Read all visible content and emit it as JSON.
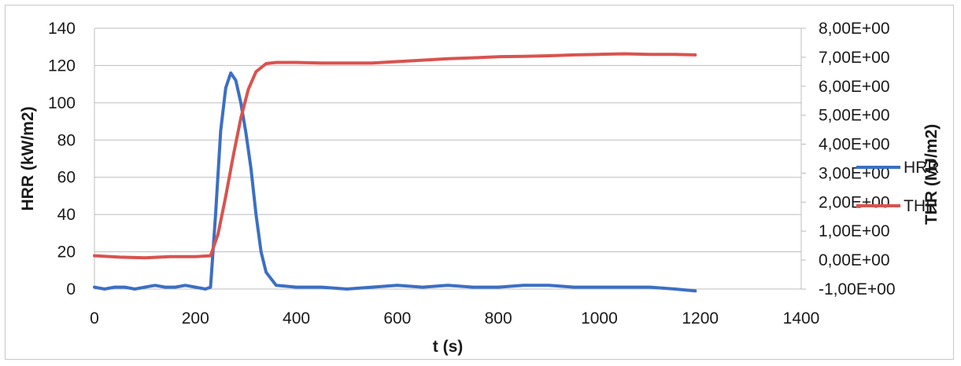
{
  "chart_data": {
    "type": "line",
    "xlabel": "t (s)",
    "ylabel": "HRR (kW/m2)",
    "y2label": "THR (MJ/m2)",
    "xlim": [
      0,
      1400
    ],
    "ylim": [
      0,
      140
    ],
    "y2lim": [
      -1,
      8
    ],
    "x_ticks": [
      "0",
      "200",
      "400",
      "600",
      "800",
      "1000",
      "1200",
      "1400"
    ],
    "y_ticks": [
      "0",
      "20",
      "40",
      "60",
      "80",
      "100",
      "120",
      "140"
    ],
    "y2_ticks": [
      "-1,00E+00",
      "0,00E+00",
      "1,00E+00",
      "2,00E+00",
      "3,00E+00",
      "4,00E+00",
      "5,00E+00",
      "6,00E+00",
      "7,00E+00",
      "8,00E+00"
    ],
    "grid": true,
    "legend_position": "right",
    "series": [
      {
        "name": "HRR",
        "axis": "left",
        "color": "#3c6fc4",
        "x": [
          0,
          20,
          40,
          60,
          80,
          100,
          120,
          140,
          160,
          180,
          200,
          220,
          230,
          240,
          250,
          260,
          270,
          280,
          290,
          300,
          310,
          320,
          330,
          340,
          360,
          400,
          450,
          500,
          550,
          600,
          650,
          700,
          750,
          800,
          850,
          900,
          950,
          1000,
          1050,
          1100,
          1150,
          1190
        ],
        "y": [
          1,
          0,
          1,
          1,
          0,
          1,
          2,
          1,
          1,
          2,
          1,
          0,
          1,
          40,
          85,
          108,
          116,
          112,
          100,
          84,
          65,
          40,
          20,
          9,
          2,
          1,
          1,
          0,
          1,
          2,
          1,
          2,
          1,
          1,
          2,
          2,
          1,
          1,
          1,
          1,
          0,
          -1
        ]
      },
      {
        "name": "THR",
        "axis": "right",
        "color": "#d9534f",
        "x": [
          0,
          50,
          100,
          150,
          200,
          230,
          245,
          260,
          275,
          290,
          305,
          320,
          340,
          360,
          400,
          450,
          500,
          550,
          600,
          650,
          700,
          750,
          800,
          850,
          900,
          950,
          1000,
          1050,
          1100,
          1150,
          1190
        ],
        "y": [
          0.15,
          0.1,
          0.08,
          0.12,
          0.12,
          0.15,
          0.9,
          2.2,
          3.6,
          4.9,
          5.9,
          6.5,
          6.78,
          6.82,
          6.82,
          6.8,
          6.8,
          6.8,
          6.85,
          6.9,
          6.95,
          6.98,
          7.02,
          7.03,
          7.05,
          7.08,
          7.1,
          7.12,
          7.1,
          7.1,
          7.08
        ]
      }
    ]
  }
}
